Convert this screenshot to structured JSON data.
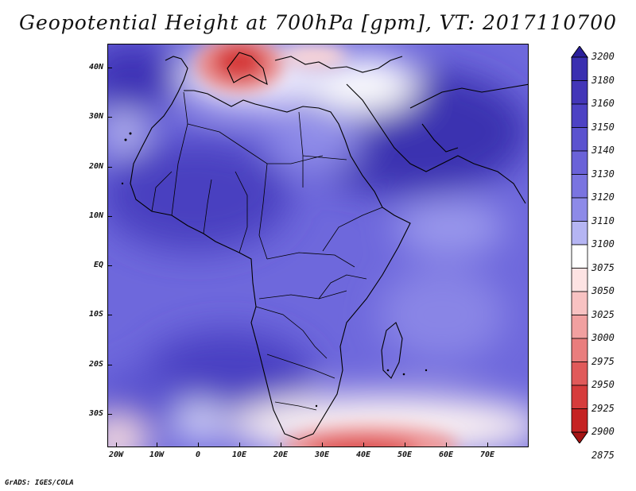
{
  "title": "Geopotential Height at 700hPa [gpm], VT: 2017110700",
  "credit": "GrADS: IGES/COLA",
  "axes": {
    "lat_labels": [
      "40N",
      "30N",
      "20N",
      "10N",
      "EQ",
      "10S",
      "20S",
      "30S"
    ],
    "lon_labels": [
      "20W",
      "10W",
      "0",
      "10E",
      "20E",
      "30E",
      "40E",
      "50E",
      "60E",
      "70E"
    ]
  },
  "colorbar": {
    "levels": [
      "3200",
      "3180",
      "3160",
      "3150",
      "3140",
      "3130",
      "3120",
      "3110",
      "3100",
      "3075",
      "3050",
      "3025",
      "3000",
      "2975",
      "2950",
      "2925",
      "2900",
      "2875"
    ],
    "colors": [
      "#2a1f9a",
      "#3a2fb0",
      "#4336b8",
      "#4d42c4",
      "#5b52cf",
      "#6a62d8",
      "#7a74e0",
      "#8d8ae8",
      "#b5b5f3",
      "#ffffff",
      "#fde3e3",
      "#f8c2c2",
      "#f1a0a0",
      "#e97d7d",
      "#e05a5a",
      "#d63c3c",
      "#c52222",
      "#a51414"
    ]
  },
  "regions": {
    "europe_high": "#e04848",
    "south_ridge": "#f2a3a3",
    "ocean_base": "#6e68dc"
  }
}
